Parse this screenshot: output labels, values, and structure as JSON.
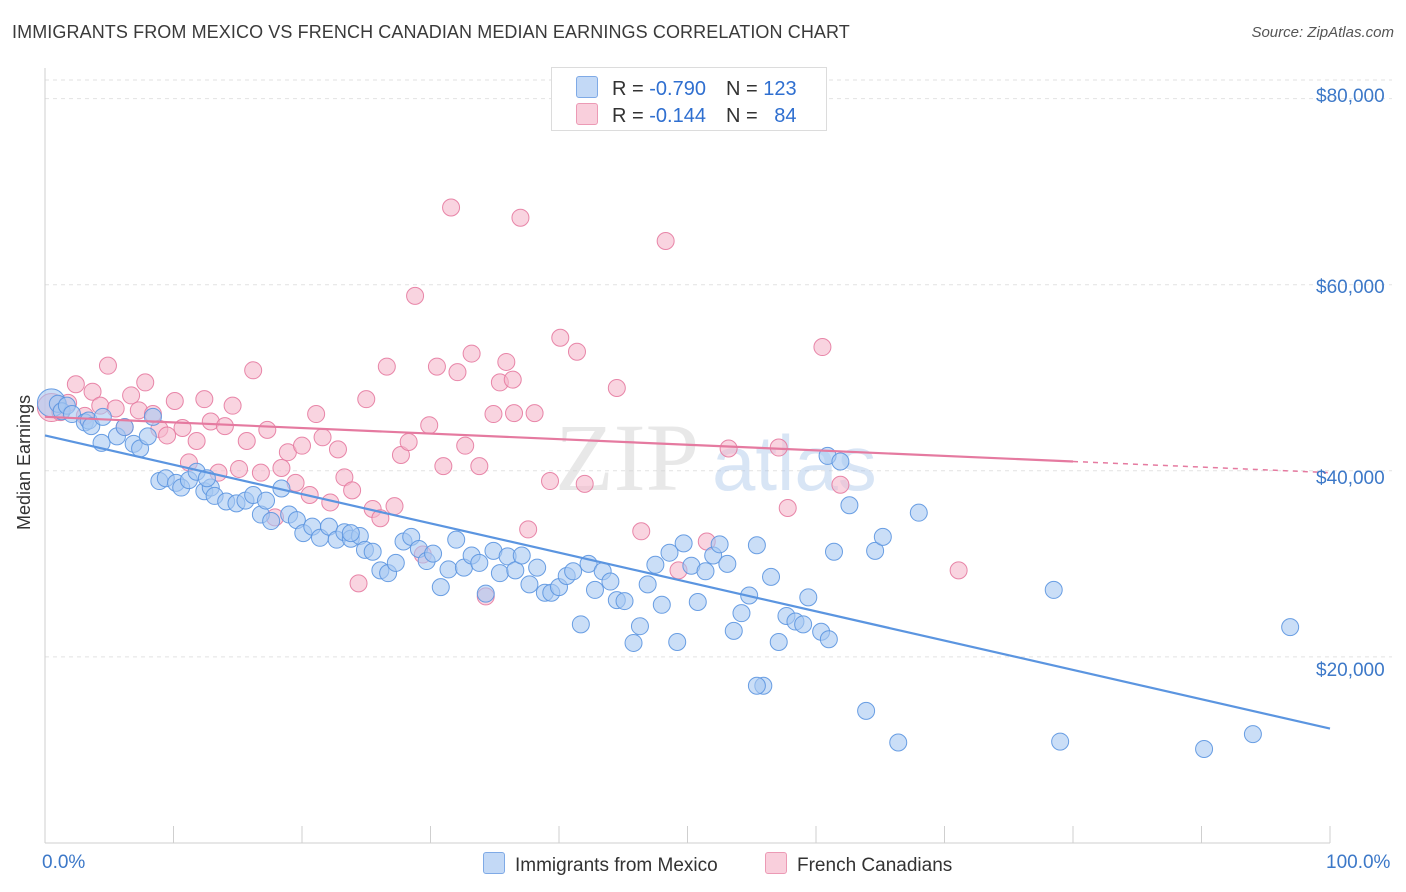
{
  "title": "IMMIGRANTS FROM MEXICO VS FRENCH CANADIAN MEDIAN EARNINGS CORRELATION CHART",
  "source": "Source: ZipAtlas.com",
  "watermark": {
    "zip": "ZIP",
    "atlas": "atlas"
  },
  "legend": {
    "rows": [
      {
        "r_label": "R = ",
        "r_value": "-0.790",
        "n_label": "N = ",
        "n_value": "123",
        "color": "#a7c8f2"
      },
      {
        "r_label": "R = ",
        "r_value": "-0.144",
        "n_label": "N = ",
        "n_value": "84",
        "color": "#f5b8cc"
      }
    ]
  },
  "chart_data": {
    "type": "scatter",
    "title": "IMMIGRANTS FROM MEXICO VS FRENCH CANADIAN MEDIAN EARNINGS CORRELATION CHART",
    "xlabel": "",
    "ylabel": "Median Earnings",
    "xlim": [
      0,
      100
    ],
    "ylim": [
      0,
      82000
    ],
    "x_tick_labels": [
      "0.0%",
      "100.0%"
    ],
    "y_tick_labels": [
      "$20,000",
      "$40,000",
      "$60,000",
      "$80,000"
    ],
    "y_ticks": [
      20000,
      40000,
      60000,
      80000
    ],
    "grid": true,
    "legend_position": "bottom",
    "series": [
      {
        "name": "Immigrants from Mexico",
        "color": "#5b95e0",
        "fill": "#a7c8f2",
        "trend": {
          "x": [
            0,
            100
          ],
          "y": [
            43800,
            12300
          ]
        },
        "points": [
          [
            0.5,
            47300
          ],
          [
            1.0,
            47200
          ],
          [
            1.3,
            46400
          ],
          [
            1.7,
            47000
          ],
          [
            2.1,
            46100
          ],
          [
            3.1,
            45200
          ],
          [
            3.4,
            45400
          ],
          [
            3.6,
            44800
          ],
          [
            4.5,
            45800
          ],
          [
            4.4,
            43000
          ],
          [
            5.6,
            43700
          ],
          [
            6.2,
            44700
          ],
          [
            6.9,
            42900
          ],
          [
            7.4,
            42400
          ],
          [
            8.0,
            43700
          ],
          [
            8.4,
            45800
          ],
          [
            8.9,
            38900
          ],
          [
            9.4,
            39200
          ],
          [
            10.2,
            38700
          ],
          [
            10.6,
            38200
          ],
          [
            11.2,
            39000
          ],
          [
            11.8,
            39900
          ],
          [
            12.4,
            37800
          ],
          [
            12.9,
            38200
          ],
          [
            13.2,
            37300
          ],
          [
            14.1,
            36700
          ],
          [
            14.9,
            36500
          ],
          [
            15.6,
            36800
          ],
          [
            16.2,
            37400
          ],
          [
            16.8,
            35300
          ],
          [
            17.2,
            36800
          ],
          [
            17.6,
            34600
          ],
          [
            18.4,
            38100
          ],
          [
            19.0,
            35300
          ],
          [
            19.6,
            34700
          ],
          [
            20.1,
            33300
          ],
          [
            20.8,
            34000
          ],
          [
            21.4,
            32800
          ],
          [
            22.1,
            34000
          ],
          [
            22.7,
            32600
          ],
          [
            23.3,
            33400
          ],
          [
            23.8,
            32700
          ],
          [
            24.5,
            33000
          ],
          [
            24.9,
            31500
          ],
          [
            25.5,
            31300
          ],
          [
            26.1,
            29300
          ],
          [
            26.7,
            29000
          ],
          [
            27.3,
            30100
          ],
          [
            27.9,
            32400
          ],
          [
            28.5,
            32900
          ],
          [
            29.1,
            31600
          ],
          [
            29.7,
            30300
          ],
          [
            30.2,
            31100
          ],
          [
            30.8,
            27500
          ],
          [
            31.4,
            29400
          ],
          [
            32.0,
            32600
          ],
          [
            32.6,
            29600
          ],
          [
            33.2,
            30900
          ],
          [
            33.8,
            30100
          ],
          [
            34.3,
            26800
          ],
          [
            34.9,
            31400
          ],
          [
            35.4,
            29000
          ],
          [
            36.0,
            30800
          ],
          [
            36.6,
            29300
          ],
          [
            37.1,
            30900
          ],
          [
            37.7,
            27800
          ],
          [
            38.3,
            29600
          ],
          [
            38.9,
            26900
          ],
          [
            39.4,
            26900
          ],
          [
            40.0,
            27500
          ],
          [
            40.6,
            28700
          ],
          [
            41.1,
            29200
          ],
          [
            41.7,
            23500
          ],
          [
            42.3,
            30000
          ],
          [
            42.8,
            27200
          ],
          [
            43.4,
            29200
          ],
          [
            44.0,
            28100
          ],
          [
            44.5,
            26100
          ],
          [
            45.1,
            26000
          ],
          [
            45.8,
            21500
          ],
          [
            46.3,
            23300
          ],
          [
            46.9,
            27800
          ],
          [
            47.5,
            29900
          ],
          [
            48.0,
            25600
          ],
          [
            48.6,
            31200
          ],
          [
            49.2,
            21600
          ],
          [
            49.7,
            32200
          ],
          [
            50.3,
            29800
          ],
          [
            50.8,
            25900
          ],
          [
            51.4,
            29200
          ],
          [
            52.0,
            30900
          ],
          [
            52.5,
            32100
          ],
          [
            53.1,
            30000
          ],
          [
            53.6,
            22800
          ],
          [
            54.2,
            24700
          ],
          [
            54.8,
            26600
          ],
          [
            55.4,
            32000
          ],
          [
            55.9,
            16900
          ],
          [
            56.5,
            28600
          ],
          [
            57.1,
            21600
          ],
          [
            57.7,
            24400
          ],
          [
            58.4,
            23800
          ],
          [
            59.0,
            23500
          ],
          [
            59.4,
            26400
          ],
          [
            60.4,
            22700
          ],
          [
            60.9,
            41600
          ],
          [
            61.0,
            21900
          ],
          [
            61.4,
            31300
          ],
          [
            61.9,
            41000
          ],
          [
            62.6,
            36300
          ],
          [
            63.9,
            14200
          ],
          [
            64.6,
            31400
          ],
          [
            65.2,
            32900
          ],
          [
            68.0,
            35500
          ],
          [
            78.5,
            27200
          ],
          [
            90.2,
            10100
          ],
          [
            94.0,
            11700
          ],
          [
            96.9,
            23200
          ],
          [
            79.0,
            10900
          ],
          [
            66.4,
            10800
          ],
          [
            55.4,
            16900
          ],
          [
            23.8,
            33300
          ],
          [
            12.6,
            39200
          ]
        ]
      },
      {
        "name": "French Canadians",
        "color": "#e57aa0",
        "fill": "#f5b8cc",
        "trend": {
          "x": [
            0,
            100
          ],
          "y": [
            45800,
            39800
          ]
        },
        "trend_solid_until": 80,
        "points": [
          [
            0.5,
            46800
          ],
          [
            1.2,
            46300
          ],
          [
            1.8,
            47300
          ],
          [
            2.4,
            49300
          ],
          [
            3.1,
            45900
          ],
          [
            3.7,
            48500
          ],
          [
            4.3,
            47000
          ],
          [
            4.9,
            51300
          ],
          [
            5.5,
            46700
          ],
          [
            6.2,
            44700
          ],
          [
            6.7,
            48100
          ],
          [
            7.3,
            46500
          ],
          [
            7.8,
            49500
          ],
          [
            8.4,
            46100
          ],
          [
            8.9,
            44500
          ],
          [
            9.5,
            43800
          ],
          [
            10.1,
            47500
          ],
          [
            10.7,
            44600
          ],
          [
            11.2,
            40900
          ],
          [
            11.8,
            43200
          ],
          [
            12.4,
            47700
          ],
          [
            12.9,
            45300
          ],
          [
            13.5,
            39800
          ],
          [
            14.0,
            44800
          ],
          [
            14.6,
            47000
          ],
          [
            15.1,
            40200
          ],
          [
            15.7,
            43200
          ],
          [
            16.2,
            50800
          ],
          [
            16.8,
            39800
          ],
          [
            17.3,
            44400
          ],
          [
            17.9,
            35000
          ],
          [
            18.4,
            40300
          ],
          [
            18.9,
            42000
          ],
          [
            19.5,
            38700
          ],
          [
            20.0,
            42700
          ],
          [
            20.6,
            37400
          ],
          [
            21.1,
            46100
          ],
          [
            21.6,
            43600
          ],
          [
            22.2,
            36600
          ],
          [
            22.8,
            42300
          ],
          [
            23.3,
            39300
          ],
          [
            23.9,
            37900
          ],
          [
            24.4,
            27900
          ],
          [
            25.0,
            47700
          ],
          [
            25.5,
            35900
          ],
          [
            26.1,
            34900
          ],
          [
            26.6,
            51200
          ],
          [
            27.2,
            36200
          ],
          [
            27.7,
            41700
          ],
          [
            28.3,
            43100
          ],
          [
            28.8,
            58800
          ],
          [
            29.4,
            31000
          ],
          [
            29.9,
            44900
          ],
          [
            30.5,
            51200
          ],
          [
            31.0,
            40500
          ],
          [
            31.6,
            68300
          ],
          [
            32.1,
            50600
          ],
          [
            32.7,
            42700
          ],
          [
            33.2,
            52600
          ],
          [
            33.8,
            40500
          ],
          [
            34.3,
            26500
          ],
          [
            34.9,
            46100
          ],
          [
            35.4,
            49500
          ],
          [
            35.9,
            51700
          ],
          [
            36.5,
            46200
          ],
          [
            37.0,
            67200
          ],
          [
            37.6,
            33700
          ],
          [
            38.1,
            46200
          ],
          [
            39.3,
            38900
          ],
          [
            40.1,
            54300
          ],
          [
            41.4,
            52800
          ],
          [
            42.0,
            38600
          ],
          [
            44.5,
            48900
          ],
          [
            46.4,
            33500
          ],
          [
            48.3,
            64700
          ],
          [
            49.3,
            29300
          ],
          [
            51.5,
            32400
          ],
          [
            53.2,
            42400
          ],
          [
            57.1,
            42500
          ],
          [
            60.5,
            53300
          ],
          [
            61.9,
            38500
          ],
          [
            71.1,
            29300
          ],
          [
            57.8,
            36000
          ],
          [
            36.4,
            49800
          ]
        ]
      }
    ]
  }
}
